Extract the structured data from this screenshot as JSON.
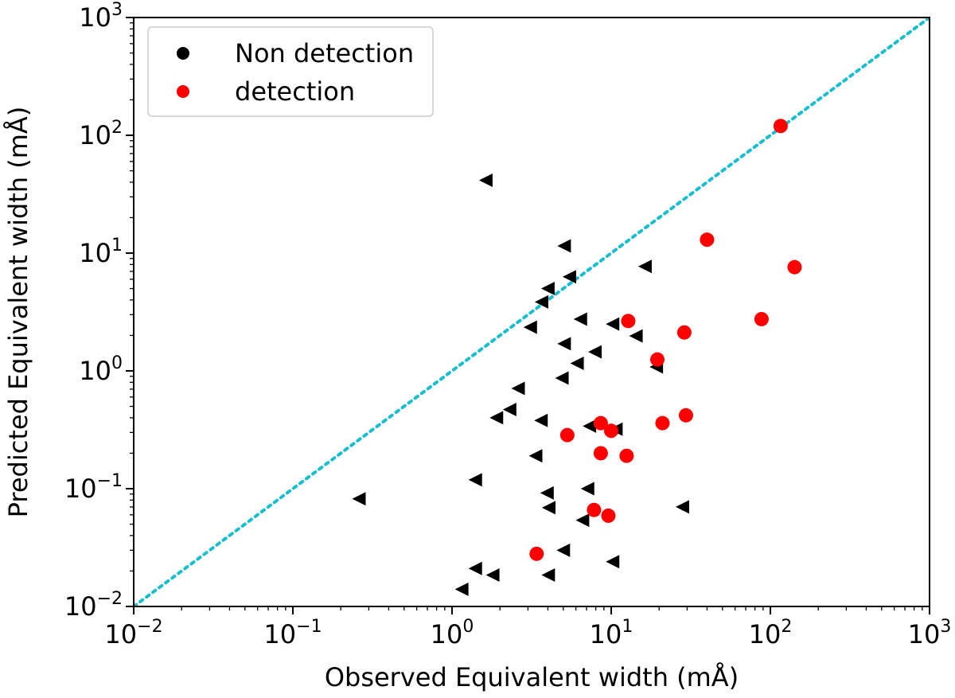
{
  "chart_data": {
    "type": "scatter",
    "xscale": "log",
    "yscale": "log",
    "xlim": [
      0.01,
      1000
    ],
    "ylim": [
      0.01,
      1000
    ],
    "xlabel": "Observed Equivalent width (mÅ)",
    "ylabel": "Predicted Equivalent width (mÅ)",
    "xticks": [
      {
        "base": "10",
        "exp": "−2"
      },
      {
        "base": "10",
        "exp": "−1"
      },
      {
        "base": "10",
        "exp": "0"
      },
      {
        "base": "10",
        "exp": "1"
      },
      {
        "base": "10",
        "exp": "2"
      },
      {
        "base": "10",
        "exp": "3"
      }
    ],
    "yticks": [
      {
        "base": "10",
        "exp": "−2"
      },
      {
        "base": "10",
        "exp": "−1"
      },
      {
        "base": "10",
        "exp": "0"
      },
      {
        "base": "10",
        "exp": "1"
      },
      {
        "base": "10",
        "exp": "2"
      },
      {
        "base": "10",
        "exp": "3"
      }
    ],
    "legend": {
      "position": "top-left",
      "entries": [
        {
          "label": "Non detection",
          "color": "#000000"
        },
        {
          "label": "detection",
          "color": "#ff0000"
        }
      ]
    },
    "reference_line": {
      "type": "y=x",
      "color": "#17becf",
      "style": "dotted"
    },
    "series": [
      {
        "name": "Non detection",
        "marker": "triangle-left",
        "color": "#000000",
        "points": [
          [
            0.26,
            0.082
          ],
          [
            1.63,
            41.5
          ],
          [
            5.06,
            11.5
          ],
          [
            5.46,
            6.3
          ],
          [
            4.0,
            5.0
          ],
          [
            3.65,
            3.85
          ],
          [
            3.1,
            2.35
          ],
          [
            6.4,
            2.75
          ],
          [
            10.2,
            2.5
          ],
          [
            14.3,
            1.98
          ],
          [
            16.3,
            7.7
          ],
          [
            19.2,
            1.08
          ],
          [
            7.9,
            1.45
          ],
          [
            5.06,
            1.7
          ],
          [
            6.1,
            1.16
          ],
          [
            4.9,
            0.87
          ],
          [
            2.6,
            0.71
          ],
          [
            2.3,
            0.47
          ],
          [
            1.9,
            0.4
          ],
          [
            3.62,
            0.38
          ],
          [
            7.3,
            0.34
          ],
          [
            10.7,
            0.32
          ],
          [
            3.35,
            0.19
          ],
          [
            1.4,
            0.119
          ],
          [
            3.95,
            0.092
          ],
          [
            7.1,
            0.1
          ],
          [
            4.05,
            0.069
          ],
          [
            6.6,
            0.054
          ],
          [
            28.0,
            0.07
          ],
          [
            5.0,
            0.03
          ],
          [
            10.2,
            0.024
          ],
          [
            1.4,
            0.021
          ],
          [
            1.8,
            0.0185
          ],
          [
            4.02,
            0.0185
          ],
          [
            1.15,
            0.014
          ]
        ]
      },
      {
        "name": "detection",
        "marker": "circle",
        "color": "#ff0000",
        "points": [
          [
            116,
            120
          ],
          [
            40,
            13
          ],
          [
            142,
            7.6
          ],
          [
            88,
            2.75
          ],
          [
            12.8,
            2.65
          ],
          [
            28.8,
            2.12
          ],
          [
            19.5,
            1.25
          ],
          [
            29.5,
            0.42
          ],
          [
            21,
            0.36
          ],
          [
            8.6,
            0.36
          ],
          [
            10,
            0.31
          ],
          [
            5.3,
            0.285
          ],
          [
            8.6,
            0.2
          ],
          [
            12.5,
            0.19
          ],
          [
            7.8,
            0.066
          ],
          [
            9.6,
            0.059
          ],
          [
            3.4,
            0.028
          ]
        ]
      }
    ]
  }
}
